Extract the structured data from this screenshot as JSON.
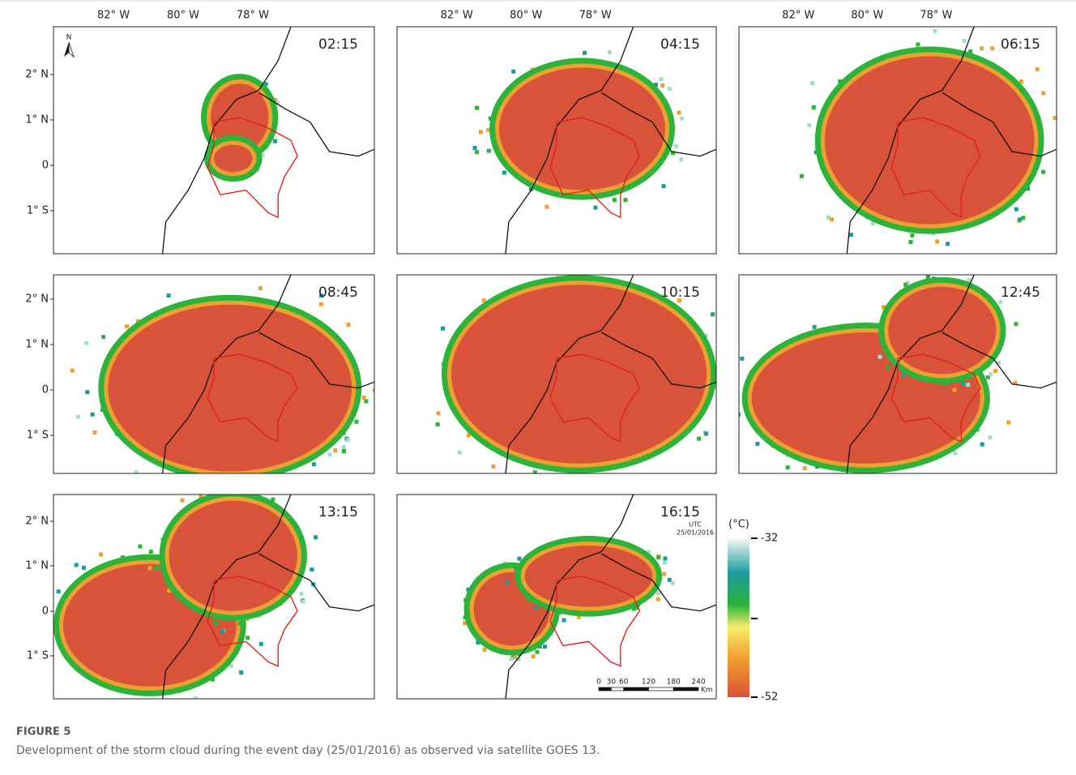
{
  "figure": {
    "label": "FIGURE 5",
    "caption": "Development of the storm cloud during the event day (25/01/2016) as observed via satellite GOES 13."
  },
  "map": {
    "lon_labels": [
      "82° W",
      "80° W",
      "78° W"
    ],
    "lat_labels": [
      "2° N",
      "1° N",
      "0",
      "1° S"
    ],
    "north": "N"
  },
  "panels": [
    {
      "time": "02:15"
    },
    {
      "time": "04:15"
    },
    {
      "time": "06:15"
    },
    {
      "time": "08:45"
    },
    {
      "time": "10:15"
    },
    {
      "time": "12:45"
    },
    {
      "time": "13:15"
    },
    {
      "time": "16:15"
    }
  ],
  "panel_note": {
    "unit": "UTC",
    "date": "25/01/2016"
  },
  "legend": {
    "unit": "(°C)",
    "max": -32,
    "min": -52
  },
  "scale_bar": {
    "ticks": [
      0,
      30,
      60,
      120,
      180,
      240
    ],
    "unit": "Km"
  }
}
